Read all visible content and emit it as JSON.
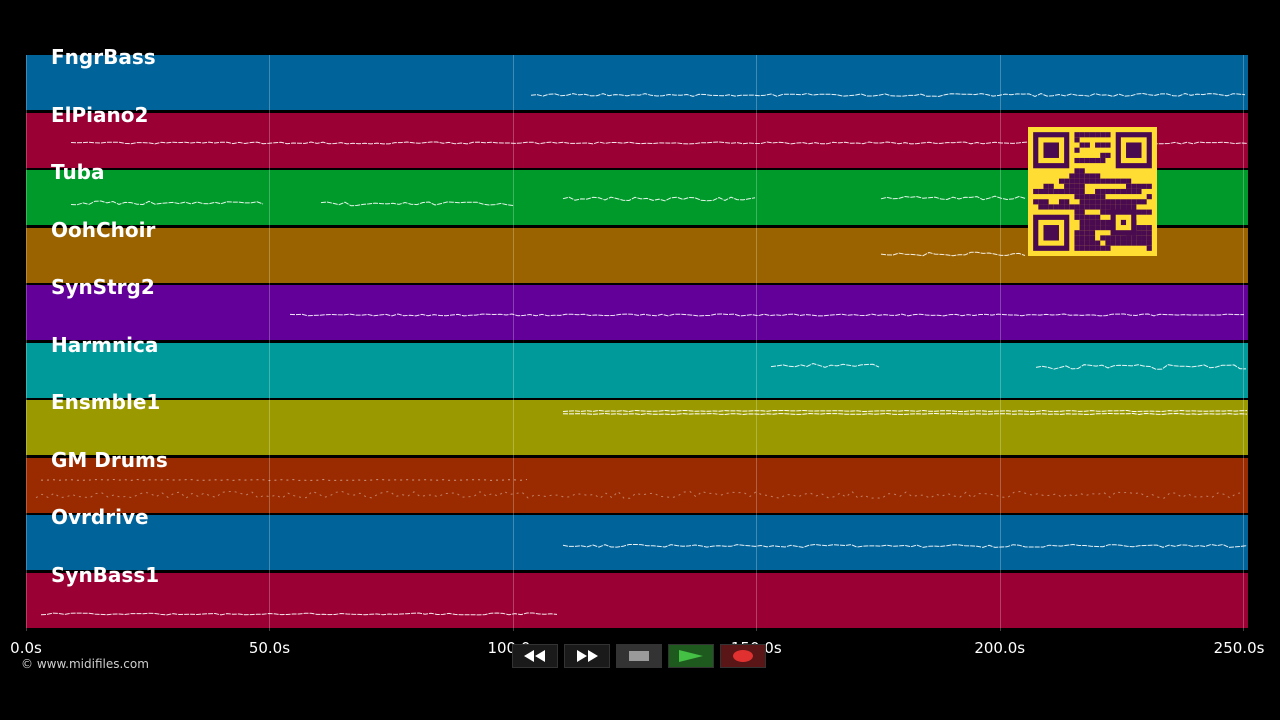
{
  "tracks": [
    {
      "name": "FngrBass",
      "color": "#00639a"
    },
    {
      "name": "ElPiano2",
      "color": "#9a0033"
    },
    {
      "name": "Tuba",
      "color": "#009a2b"
    },
    {
      "name": "OohChoir",
      "color": "#9a6300"
    },
    {
      "name": "SynStrg2",
      "color": "#63009a"
    },
    {
      "name": "Harmnica",
      "color": "#009a9a"
    },
    {
      "name": "Ensmble1",
      "color": "#9a9a00"
    },
    {
      "name": "GM Drums",
      "color": "#9a2b00"
    },
    {
      "name": "Ovrdrive",
      "color": "#00639a"
    },
    {
      "name": "SynBass1",
      "color": "#9a0033"
    }
  ],
  "timeline": {
    "ticks": [
      "0.0s",
      "50.0s",
      "100.0s",
      "150.0s",
      "200.0s",
      "250.0s"
    ],
    "tick_values": [
      0,
      50,
      100,
      150,
      200,
      250
    ],
    "max": 251
  },
  "copyright": "© www.midifiles.com",
  "transport": {
    "rewind_icon": "rewind-icon",
    "forward_icon": "fast-forward-icon",
    "stop_icon": "stop-icon",
    "play_icon": "play-icon",
    "record_icon": "record-icon"
  },
  "qr_icon": "qr-code-icon"
}
